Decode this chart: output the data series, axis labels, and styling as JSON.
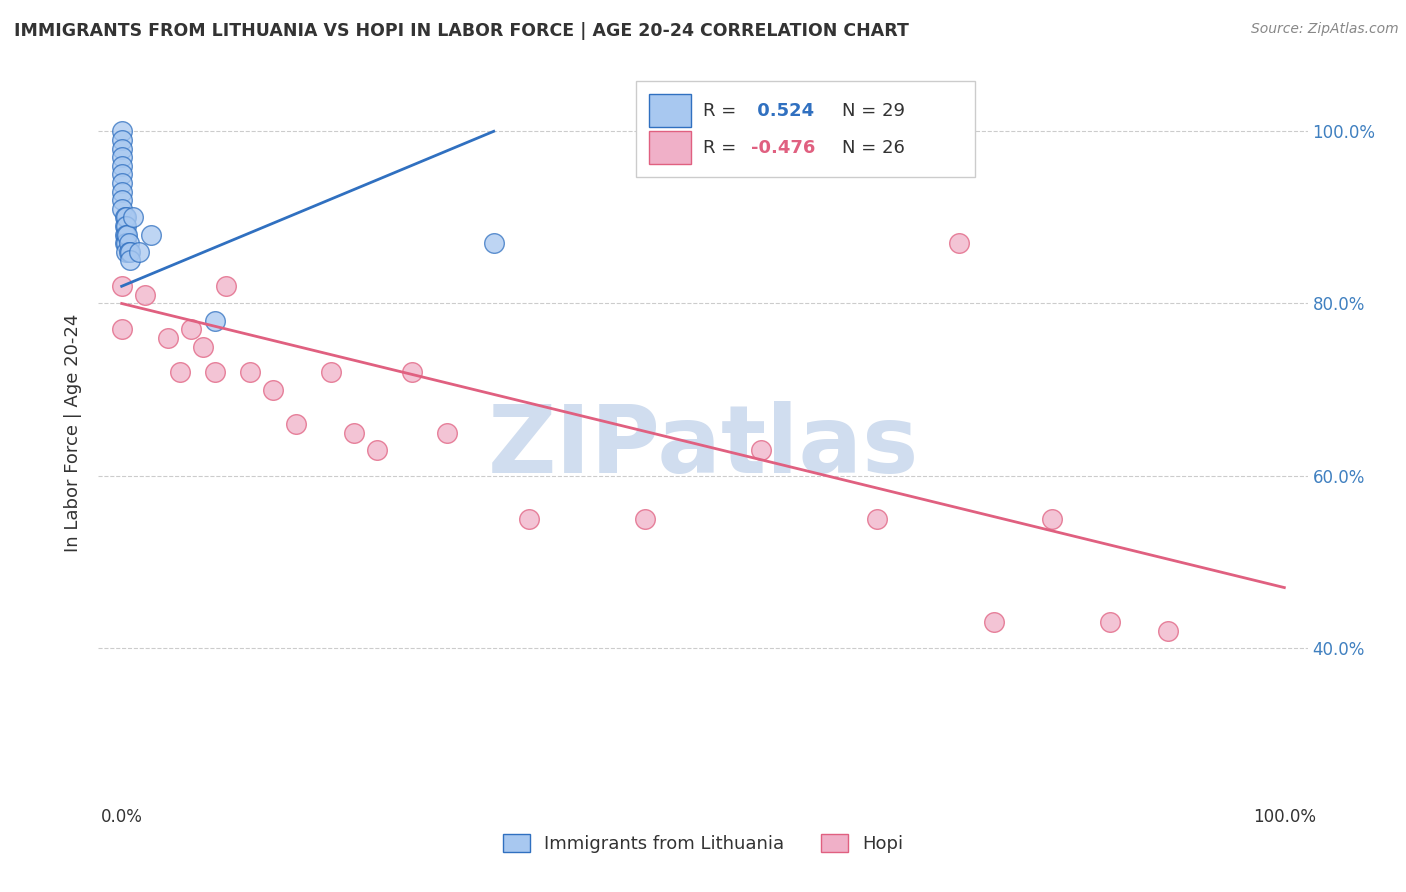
{
  "title": "IMMIGRANTS FROM LITHUANIA VS HOPI IN LABOR FORCE | AGE 20-24 CORRELATION CHART",
  "source": "Source: ZipAtlas.com",
  "ylabel": "In Labor Force | Age 20-24",
  "blue_label": "Immigrants from Lithuania",
  "pink_label": "Hopi",
  "blue_R": 0.524,
  "blue_N": 29,
  "pink_R": -0.476,
  "pink_N": 26,
  "blue_scatter_x": [
    0.0,
    0.0,
    0.0,
    0.0,
    0.0,
    0.0,
    0.0,
    0.0,
    0.0,
    0.0,
    0.003,
    0.003,
    0.003,
    0.003,
    0.004,
    0.004,
    0.004,
    0.004,
    0.004,
    0.005,
    0.006,
    0.006,
    0.007,
    0.007,
    0.01,
    0.015,
    0.025,
    0.08,
    0.32
  ],
  "blue_scatter_y": [
    1.0,
    0.99,
    0.98,
    0.97,
    0.96,
    0.95,
    0.94,
    0.93,
    0.92,
    0.91,
    0.9,
    0.89,
    0.88,
    0.87,
    0.9,
    0.89,
    0.88,
    0.87,
    0.86,
    0.88,
    0.87,
    0.86,
    0.86,
    0.85,
    0.9,
    0.86,
    0.88,
    0.78,
    0.87
  ],
  "pink_scatter_x": [
    0.0,
    0.0,
    0.02,
    0.04,
    0.05,
    0.06,
    0.07,
    0.08,
    0.09,
    0.11,
    0.13,
    0.15,
    0.18,
    0.2,
    0.22,
    0.25,
    0.28,
    0.35,
    0.45,
    0.55,
    0.65,
    0.72,
    0.75,
    0.8,
    0.85,
    0.9
  ],
  "pink_scatter_y": [
    0.82,
    0.77,
    0.81,
    0.76,
    0.72,
    0.77,
    0.75,
    0.72,
    0.82,
    0.72,
    0.7,
    0.66,
    0.72,
    0.65,
    0.63,
    0.72,
    0.65,
    0.55,
    0.55,
    0.63,
    0.55,
    0.87,
    0.43,
    0.55,
    0.43,
    0.42
  ],
  "blue_line_x": [
    0.0,
    0.32
  ],
  "blue_line_y": [
    0.82,
    1.0
  ],
  "pink_line_x": [
    0.0,
    1.0
  ],
  "pink_line_y": [
    0.8,
    0.47
  ],
  "background_color": "#ffffff",
  "plot_bg_color": "#ffffff",
  "blue_color": "#a8c8f0",
  "pink_color": "#f0b0c8",
  "blue_line_color": "#3070c0",
  "pink_line_color": "#e06080",
  "watermark_text": "ZIPatlas",
  "watermark_color": "#d0ddef",
  "grid_color": "#cccccc",
  "title_color": "#333333",
  "source_color": "#888888",
  "right_tick_color": "#4080c0",
  "xlim": [
    -0.02,
    1.02
  ],
  "ylim": [
    0.22,
    1.08
  ],
  "yticks": [
    0.4,
    0.6,
    0.8,
    1.0
  ],
  "ytick_labels": [
    "40.0%",
    "60.0%",
    "80.0%",
    "100.0%"
  ],
  "xtick_left": "0.0%",
  "xtick_right": "100.0%"
}
